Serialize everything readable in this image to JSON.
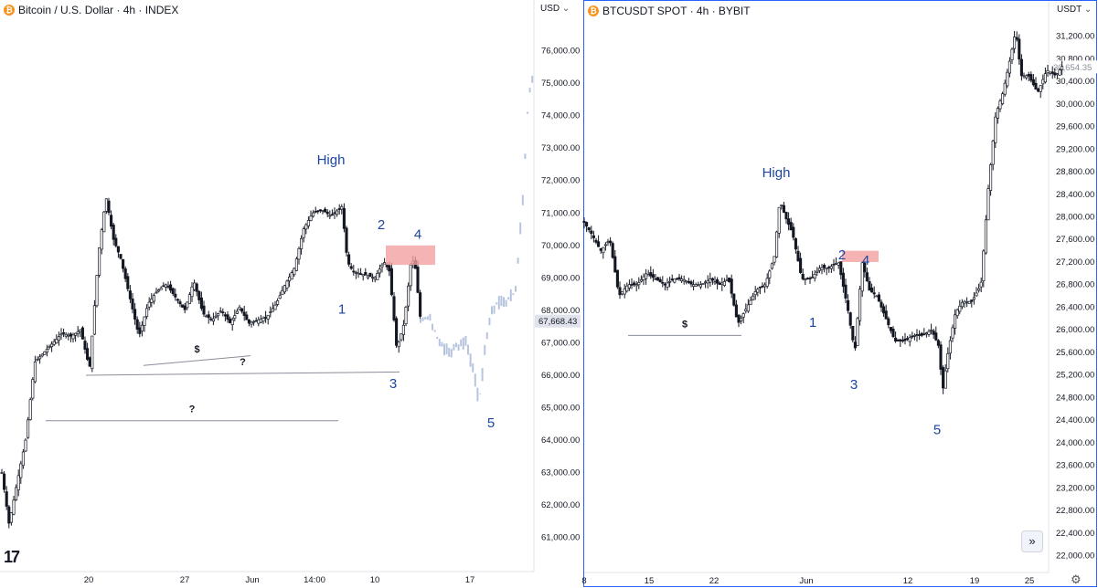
{
  "left": {
    "title": "Bitcoin / U.S. Dollar · 4h · INDEX",
    "currency": "USD",
    "price_ticks": [
      "76,000.00",
      "75,000.00",
      "74,000.00",
      "73,000.00",
      "72,000.00",
      "71,000.00",
      "70,000.00",
      "69,000.00",
      "68,000.00",
      "67,000.00",
      "66,000.00",
      "65,000.00",
      "64,000.00",
      "63,000.00",
      "62,000.00",
      "61,000.00"
    ],
    "last_price": "67,668.43",
    "time_ticks": [
      "20",
      "27",
      "Jun",
      "14:00",
      "10",
      "17"
    ],
    "annotations": {
      "high": "High",
      "w1": "1",
      "w2": "2",
      "w3": "3",
      "w4": "4",
      "w5": "5",
      "dollar": "$",
      "q1": "?",
      "q2": "?"
    }
  },
  "right": {
    "title": "BTCUSDT SPOT · 4h · BYBIT",
    "currency": "USDT",
    "price_ticks": [
      "31,200.00",
      "30,800.00",
      "30,400.00",
      "30,000.00",
      "29,600.00",
      "29,200.00",
      "28,800.00",
      "28,400.00",
      "28,000.00",
      "27,600.00",
      "27,200.00",
      "26,800.00",
      "26,400.00",
      "26,000.00",
      "25,600.00",
      "25,200.00",
      "24,800.00",
      "24,400.00",
      "24,000.00",
      "23,600.00",
      "23,200.00",
      "22,800.00",
      "22,400.00",
      "22,000.00"
    ],
    "last_price": "30,654.35",
    "time_ticks": [
      "8",
      "15",
      "22",
      "Jun",
      "12",
      "19",
      "25"
    ],
    "annotations": {
      "high": "High",
      "w1": "1",
      "w2": "2",
      "w3": "3",
      "w4": "4",
      "w5": "5",
      "dollar": "$"
    },
    "scroll_icon": "double-chevron-right-icon",
    "settings_icon": "gear-icon"
  },
  "colors": {
    "wave_label": "#1c46a0",
    "zone": "#f4a0a0",
    "projection": "#b7c4e0",
    "candle": "#131722"
  },
  "chart_data": [
    {
      "type": "candlestick",
      "title": "Bitcoin / U.S. Dollar · 4h · INDEX",
      "ylim": [
        60400,
        77000
      ],
      "x_labels": [
        "20",
        "27",
        "Jun",
        "14:00",
        "10",
        "17"
      ],
      "close_path": [
        [
          0,
          63000
        ],
        [
          8,
          61400
        ],
        [
          16,
          62600
        ],
        [
          26,
          64000
        ],
        [
          36,
          66400
        ],
        [
          46,
          66700
        ],
        [
          56,
          67000
        ],
        [
          66,
          67300
        ],
        [
          76,
          67200
        ],
        [
          86,
          67400
        ],
        [
          96,
          66200
        ],
        [
          106,
          69800
        ],
        [
          114,
          71500
        ],
        [
          122,
          70200
        ],
        [
          130,
          69600
        ],
        [
          140,
          68400
        ],
        [
          150,
          67200
        ],
        [
          160,
          68200
        ],
        [
          170,
          68600
        ],
        [
          180,
          68800
        ],
        [
          190,
          68400
        ],
        [
          200,
          68000
        ],
        [
          210,
          68900
        ],
        [
          220,
          67900
        ],
        [
          230,
          67700
        ],
        [
          240,
          68000
        ],
        [
          250,
          67600
        ],
        [
          260,
          68100
        ],
        [
          270,
          67600
        ],
        [
          280,
          67700
        ],
        [
          290,
          67800
        ],
        [
          300,
          68200
        ],
        [
          310,
          68800
        ],
        [
          320,
          69300
        ],
        [
          330,
          70500
        ],
        [
          340,
          71000
        ],
        [
          350,
          71100
        ],
        [
          360,
          70900
        ],
        [
          372,
          71200
        ],
        [
          378,
          69500
        ],
        [
          384,
          69200
        ],
        [
          396,
          69100
        ],
        [
          408,
          69000
        ],
        [
          418,
          69500
        ],
        [
          424,
          69200
        ],
        [
          432,
          66800
        ],
        [
          440,
          67600
        ],
        [
          448,
          69600
        ],
        [
          452,
          69400
        ],
        [
          458,
          67700
        ]
      ],
      "projection_path": [
        [
          458,
          67700
        ],
        [
          468,
          67800
        ],
        [
          478,
          67000
        ],
        [
          488,
          66700
        ],
        [
          498,
          66900
        ],
        [
          508,
          67000
        ],
        [
          516,
          66100
        ],
        [
          522,
          65200
        ],
        [
          532,
          67600
        ],
        [
          540,
          68200
        ],
        [
          552,
          68300
        ],
        [
          562,
          68600
        ],
        [
          570,
          71500
        ],
        [
          576,
          74600
        ],
        [
          582,
          75400
        ]
      ],
      "wave_labels": [
        {
          "label": "High",
          "t": 360,
          "price": 72500
        },
        {
          "label": "1",
          "t": 372,
          "price": 67900
        },
        {
          "label": "2",
          "t": 415,
          "price": 70500
        },
        {
          "label": "3",
          "t": 428,
          "price": 65600
        },
        {
          "label": "4",
          "t": 455,
          "price": 70200
        },
        {
          "label": "5",
          "t": 535,
          "price": 64400
        }
      ],
      "levels": [
        {
          "label": "$",
          "t1": 155,
          "t2": 272,
          "price1": 66300,
          "price2": 66600
        },
        {
          "label": "?",
          "t1": 92,
          "t2": 435,
          "price1": 66000,
          "price2": 66100
        },
        {
          "label": "?",
          "t1": 48,
          "t2": 368,
          "price1": 64600,
          "price2": 64600
        }
      ],
      "zone": {
        "t1": 420,
        "t2": 474,
        "price1": 69400,
        "price2": 70000
      },
      "last": 67668.43
    },
    {
      "type": "candlestick",
      "title": "BTCUSDT SPOT · 4h · BYBIT",
      "ylim": [
        21800,
        31500
      ],
      "x_labels": [
        "8",
        "15",
        "22",
        "Jun",
        "12",
        "19",
        "25"
      ],
      "close_path": [
        [
          0,
          27900
        ],
        [
          8,
          27700
        ],
        [
          18,
          27400
        ],
        [
          28,
          27600
        ],
        [
          38,
          26600
        ],
        [
          48,
          26800
        ],
        [
          58,
          26800
        ],
        [
          68,
          27000
        ],
        [
          78,
          26900
        ],
        [
          88,
          26800
        ],
        [
          98,
          26900
        ],
        [
          108,
          26900
        ],
        [
          118,
          26800
        ],
        [
          128,
          26800
        ],
        [
          138,
          26900
        ],
        [
          148,
          26800
        ],
        [
          158,
          26900
        ],
        [
          168,
          26100
        ],
        [
          178,
          26400
        ],
        [
          188,
          26700
        ],
        [
          198,
          26800
        ],
        [
          208,
          27300
        ],
        [
          214,
          28300
        ],
        [
          220,
          28000
        ],
        [
          228,
          27700
        ],
        [
          238,
          26900
        ],
        [
          248,
          26900
        ],
        [
          258,
          27100
        ],
        [
          268,
          27100
        ],
        [
          278,
          27200
        ],
        [
          288,
          26400
        ],
        [
          296,
          25600
        ],
        [
          304,
          27200
        ],
        [
          312,
          26700
        ],
        [
          320,
          26600
        ],
        [
          330,
          26200
        ],
        [
          340,
          25800
        ],
        [
          350,
          25800
        ],
        [
          360,
          25900
        ],
        [
          370,
          25900
        ],
        [
          380,
          26000
        ],
        [
          388,
          25700
        ],
        [
          392,
          24900
        ],
        [
          398,
          25600
        ],
        [
          406,
          26300
        ],
        [
          414,
          26500
        ],
        [
          424,
          26500
        ],
        [
          434,
          26800
        ],
        [
          442,
          28500
        ],
        [
          450,
          29800
        ],
        [
          458,
          30200
        ],
        [
          466,
          30800
        ],
        [
          472,
          31300
        ],
        [
          478,
          30500
        ],
        [
          486,
          30500
        ],
        [
          496,
          30200
        ],
        [
          506,
          30600
        ],
        [
          516,
          30500
        ],
        [
          524,
          30700
        ]
      ],
      "wave_labels": [
        {
          "label": "High",
          "t": 210,
          "price": 28700
        },
        {
          "label": "1",
          "t": 250,
          "price": 26050
        },
        {
          "label": "2",
          "t": 282,
          "price": 27250
        },
        {
          "label": "3",
          "t": 295,
          "price": 24950
        },
        {
          "label": "4",
          "t": 308,
          "price": 27150
        },
        {
          "label": "5",
          "t": 386,
          "price": 24150
        }
      ],
      "levels": [
        {
          "label": "$",
          "t1": 48,
          "t2": 172,
          "price1": 25900,
          "price2": 25900
        }
      ],
      "zone": {
        "t1": 282,
        "t2": 322,
        "price1": 27200,
        "price2": 27400
      },
      "last": 30654.35
    }
  ]
}
